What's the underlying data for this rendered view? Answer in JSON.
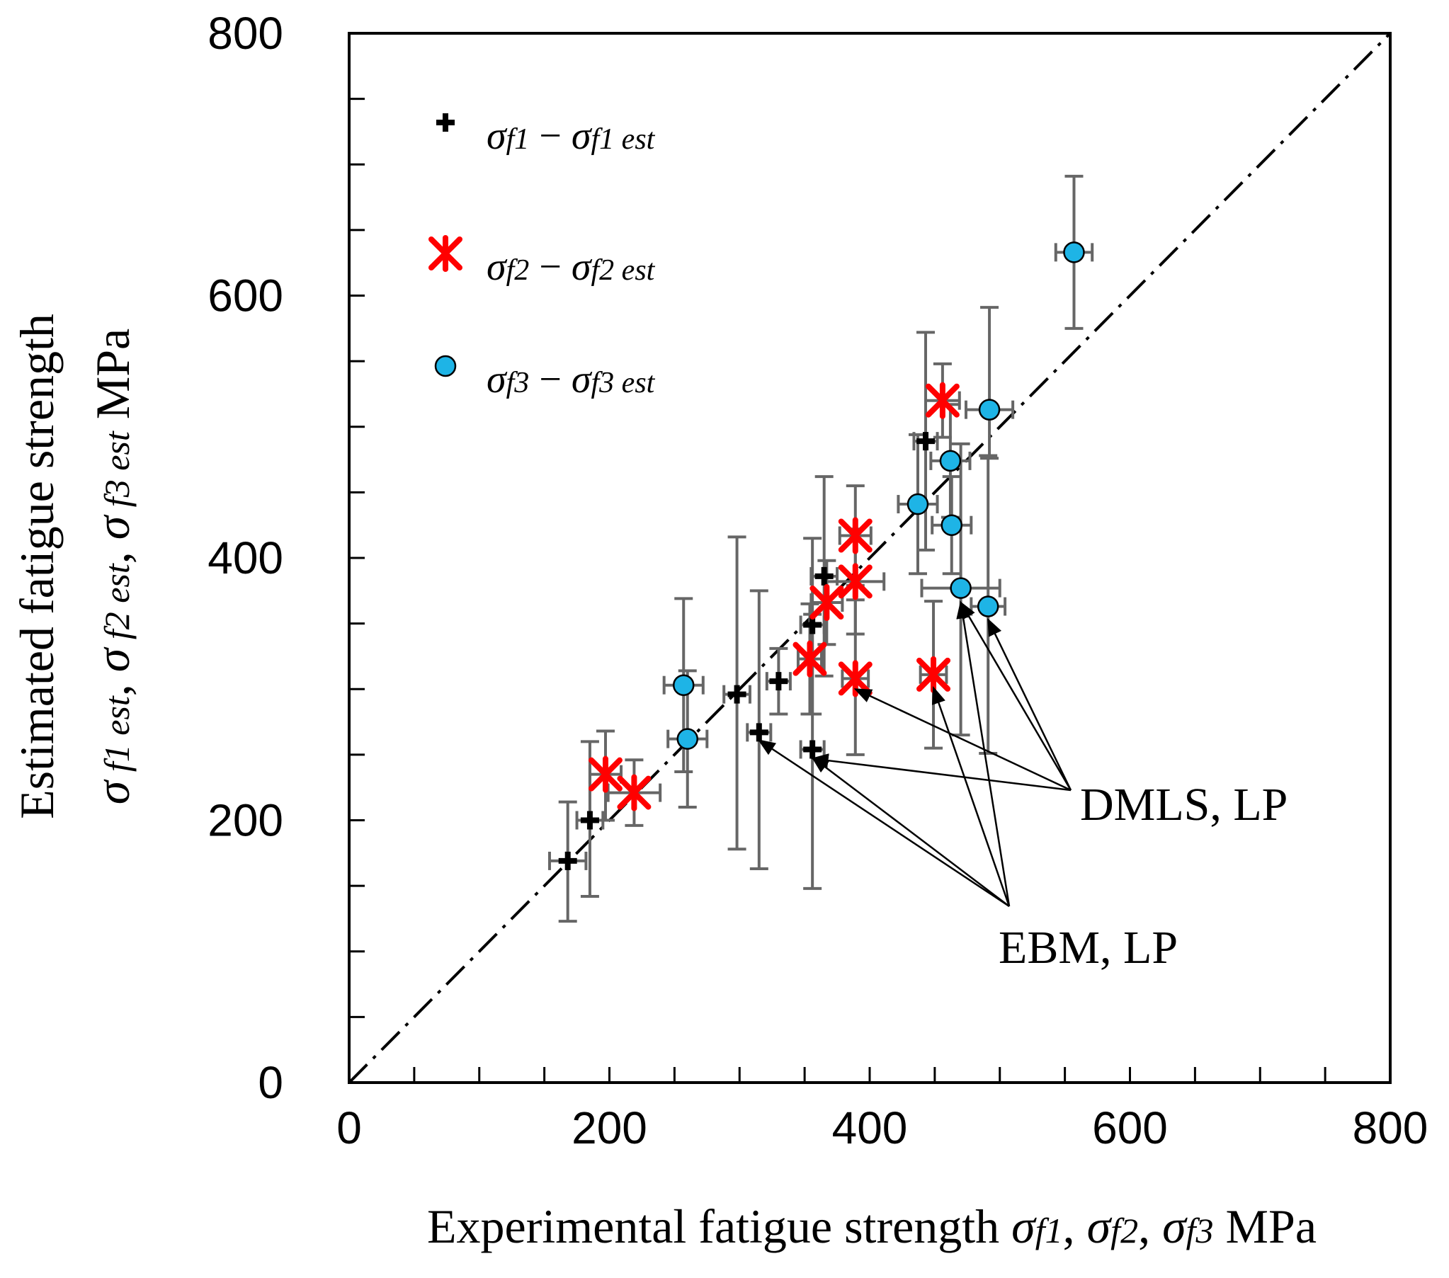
{
  "chart_data": {
    "type": "scatter",
    "title": "",
    "xlabel": {
      "prefix": "Experimental fatigue strength ",
      "s1": "σ",
      "s1sub": "f1",
      "sep1": ", ",
      "s2": "σ",
      "s2sub": "f2",
      "sep2": ", ",
      "s3": "σ",
      "s3sub": "f3",
      "unit": " MPa"
    },
    "ylabel_line1": "Estimated fatigue strength",
    "ylabel_line2": {
      "s1": "σ",
      "s1sub": "f1 est",
      "sep1": ", ",
      "s2": "σ",
      "s2sub": "f2 est",
      "sep2": ", ",
      "s3": "σ",
      "s3sub": "f3 est",
      "unit": " MPa"
    },
    "xlim": [
      0,
      800
    ],
    "ylim": [
      0,
      800
    ],
    "x_ticks": [
      "0",
      "200",
      "400",
      "600",
      "800"
    ],
    "y_ticks": [
      "0",
      "200",
      "400",
      "600",
      "800"
    ],
    "minor_tick_step": 50,
    "reference_line": {
      "style": "dash-dot",
      "from": [
        0,
        0
      ],
      "to": [
        800,
        800
      ]
    },
    "legend": {
      "position": "top-left",
      "entries": [
        {
          "marker": "plus",
          "sigma": "σ",
          "sub": "f1",
          "dash": " − ",
          "sigma2": "σ",
          "sub2": "f1 est"
        },
        {
          "marker": "asterisk",
          "sigma": "σ",
          "sub": "f2",
          "dash": " − ",
          "sigma2": "σ",
          "sub2": "f2 est"
        },
        {
          "marker": "circle",
          "sigma": "σ",
          "sub": "f3",
          "dash": " − ",
          "sigma2": "σ",
          "sub2": "f3 est"
        }
      ]
    },
    "series": [
      {
        "name": "σf1 − σf1 est",
        "marker": "plus",
        "color": "#000000",
        "points": [
          {
            "x": 168,
            "y": 169,
            "xerr": 14,
            "yerr_lo": 46,
            "yerr_hi": 45
          },
          {
            "x": 185,
            "y": 200,
            "xerr": 10,
            "yerr_lo": 58,
            "yerr_hi": 60
          },
          {
            "x": 298,
            "y": 296,
            "xerr": 10,
            "yerr_lo": 118,
            "yerr_hi": 120
          },
          {
            "x": 315,
            "y": 267,
            "xerr": 9,
            "yerr_lo": 104,
            "yerr_hi": 108
          },
          {
            "x": 330,
            "y": 306,
            "xerr": 9,
            "yerr_lo": 25,
            "yerr_hi": 25
          },
          {
            "x": 356,
            "y": 254,
            "xerr": 9,
            "yerr_lo": 106,
            "yerr_hi": 103
          },
          {
            "x": 356,
            "y": 349,
            "xerr": 9,
            "yerr_lo": 68,
            "yerr_hi": 66
          },
          {
            "x": 365,
            "y": 386,
            "xerr": 10,
            "yerr_lo": 76,
            "yerr_hi": 76
          },
          {
            "x": 443,
            "y": 489,
            "xerr": 9,
            "yerr_lo": 83,
            "yerr_hi": 83
          }
        ]
      },
      {
        "name": "σf2 − σf2 est",
        "marker": "asterisk",
        "color": "#ff0000",
        "points": [
          {
            "x": 197,
            "y": 235,
            "xerr": 12,
            "yerr_lo": 35,
            "yerr_hi": 33
          },
          {
            "x": 219,
            "y": 221,
            "xerr": 20,
            "yerr_lo": 25,
            "yerr_hi": 25
          },
          {
            "x": 354,
            "y": 323,
            "xerr": 9,
            "yerr_lo": 42,
            "yerr_hi": 42
          },
          {
            "x": 367,
            "y": 366,
            "xerr": 12,
            "yerr_lo": 32,
            "yerr_hi": 32
          },
          {
            "x": 389,
            "y": 417,
            "xerr": 12,
            "yerr_lo": 38,
            "yerr_hi": 38
          },
          {
            "x": 389,
            "y": 382,
            "xerr": 22,
            "yerr_lo": 40,
            "yerr_hi": 40
          },
          {
            "x": 389,
            "y": 308,
            "xerr": 10,
            "yerr_lo": 58,
            "yerr_hi": 60
          },
          {
            "x": 449,
            "y": 311,
            "xerr": 10,
            "yerr_lo": 56,
            "yerr_hi": 56
          },
          {
            "x": 456,
            "y": 520,
            "xerr": 13,
            "yerr_lo": 28,
            "yerr_hi": 28
          }
        ]
      },
      {
        "name": "σf3 − σf3 est",
        "marker": "circle",
        "color": "#1eb4e6",
        "points": [
          {
            "x": 257,
            "y": 303,
            "xerr": 15,
            "yerr_lo": 66,
            "yerr_hi": 66
          },
          {
            "x": 260,
            "y": 262,
            "xerr": 15,
            "yerr_lo": 52,
            "yerr_hi": 52
          },
          {
            "x": 437,
            "y": 441,
            "xerr": 15,
            "yerr_lo": 53,
            "yerr_hi": 53
          },
          {
            "x": 462,
            "y": 474,
            "xerr": 15,
            "yerr_lo": 43,
            "yerr_hi": 43
          },
          {
            "x": 463,
            "y": 425,
            "xerr": 15,
            "yerr_lo": 37,
            "yerr_hi": 37
          },
          {
            "x": 470,
            "y": 377,
            "xerr": 30,
            "yerr_lo": 112,
            "yerr_hi": 110
          },
          {
            "x": 492,
            "y": 513,
            "xerr": 18,
            "yerr_lo": 37,
            "yerr_hi": 78
          },
          {
            "x": 491,
            "y": 363,
            "xerr": 13,
            "yerr_lo": 112,
            "yerr_hi": 115
          },
          {
            "x": 557,
            "y": 633,
            "xerr": 14,
            "yerr_lo": 58,
            "yerr_hi": 58
          }
        ]
      }
    ],
    "annotations": [
      {
        "text": "DMLS, LP",
        "targets": [
          [
            389,
            300
          ],
          [
            356,
            247
          ],
          [
            491,
            353
          ],
          [
            470,
            366
          ]
        ]
      },
      {
        "text": "EBM, LP",
        "targets": [
          [
            315,
            261
          ],
          [
            356,
            248
          ],
          [
            449,
            301
          ],
          [
            470,
            366
          ]
        ]
      }
    ],
    "colors": {
      "errorbar": "#666666",
      "axis": "#000000",
      "refline": "#000000"
    }
  }
}
